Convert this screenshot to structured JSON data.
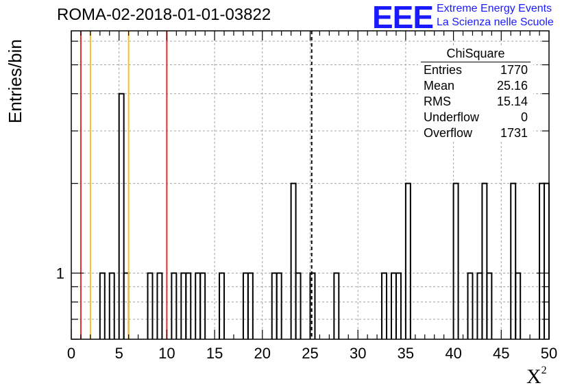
{
  "title": "ROMA-02-2018-01-01-03822",
  "logo": {
    "mark": "EEE",
    "line1": "Extreme Energy Events",
    "line2": "La Scienza nelle Scuole",
    "color": "#1a1aff"
  },
  "stats_box": {
    "title": "ChiSquare",
    "rows": [
      {
        "label": "Entries",
        "value": "1770"
      },
      {
        "label": "Mean",
        "value": "25.16"
      },
      {
        "label": "RMS",
        "value": "15.14"
      },
      {
        "label": "Underflow",
        "value": "0"
      },
      {
        "label": "Overflow",
        "value": "1731"
      }
    ]
  },
  "chart_data": {
    "type": "bar",
    "histogram": true,
    "xlabel_base": "X",
    "xlabel_sup": "2",
    "ylabel": "Entries/bin",
    "xlim": [
      0,
      50
    ],
    "ylim": [
      0.6,
      6.5
    ],
    "y_log": true,
    "x_ticks": [
      "0",
      "5",
      "10",
      "15",
      "20",
      "25",
      "30",
      "35",
      "40",
      "45",
      "50"
    ],
    "y_tick_labels": [
      {
        "value": 1,
        "label": "1"
      }
    ],
    "grid": true,
    "bin_width": 0.5,
    "bins": [
      {
        "x": 3.0,
        "count": 1
      },
      {
        "x": 4.0,
        "count": 1
      },
      {
        "x": 5.0,
        "count": 4
      },
      {
        "x": 5.5,
        "count": 1
      },
      {
        "x": 8.0,
        "count": 1
      },
      {
        "x": 9.0,
        "count": 1
      },
      {
        "x": 10.5,
        "count": 1
      },
      {
        "x": 11.5,
        "count": 1
      },
      {
        "x": 12.0,
        "count": 1
      },
      {
        "x": 13.0,
        "count": 1
      },
      {
        "x": 13.5,
        "count": 1
      },
      {
        "x": 15.5,
        "count": 1
      },
      {
        "x": 18.0,
        "count": 1
      },
      {
        "x": 18.5,
        "count": 1
      },
      {
        "x": 21.0,
        "count": 1
      },
      {
        "x": 21.5,
        "count": 1
      },
      {
        "x": 23.0,
        "count": 2
      },
      {
        "x": 23.5,
        "count": 1
      },
      {
        "x": 25.0,
        "count": 1
      },
      {
        "x": 27.5,
        "count": 1
      },
      {
        "x": 32.5,
        "count": 1
      },
      {
        "x": 33.5,
        "count": 1
      },
      {
        "x": 34.0,
        "count": 1
      },
      {
        "x": 35.0,
        "count": 2
      },
      {
        "x": 40.0,
        "count": 2
      },
      {
        "x": 41.5,
        "count": 1
      },
      {
        "x": 42.5,
        "count": 1
      },
      {
        "x": 43.0,
        "count": 2
      },
      {
        "x": 43.5,
        "count": 1
      },
      {
        "x": 46.0,
        "count": 2
      },
      {
        "x": 46.5,
        "count": 1
      },
      {
        "x": 49.0,
        "count": 2
      },
      {
        "x": 49.5,
        "count": 2
      }
    ],
    "reference_lines": [
      {
        "x": 1,
        "color": "#e8292b",
        "style": "solid"
      },
      {
        "x": 2,
        "color": "#f5c026",
        "style": "solid"
      },
      {
        "x": 6,
        "color": "#f5c026",
        "style": "solid"
      },
      {
        "x": 10,
        "color": "#e8292b",
        "style": "solid"
      },
      {
        "x": 25.16,
        "color": "#000000",
        "style": "dashed"
      }
    ]
  }
}
